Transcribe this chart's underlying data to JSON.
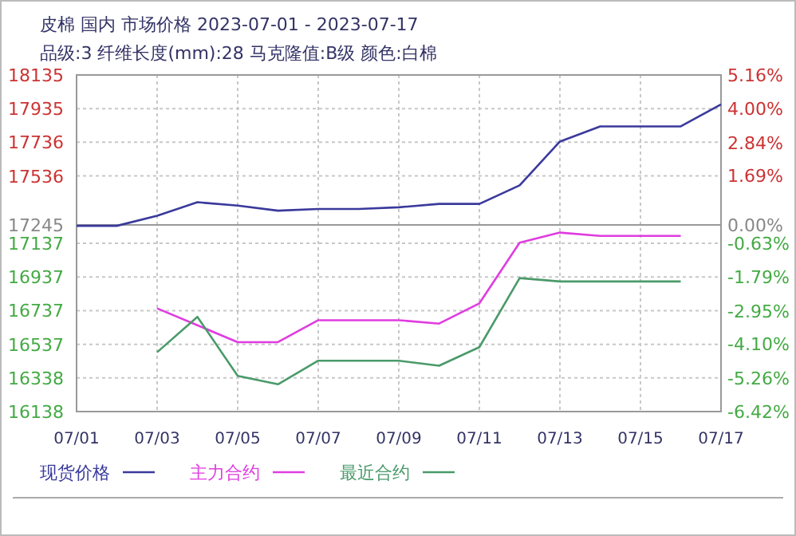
{
  "chart_data": {
    "type": "line",
    "title": "皮棉 国内 市场价格 2023-07-01 - 2023-07-17",
    "subtitle": "品级:3 纤维长度(mm):28 马克隆值:B级 颜色:白棉",
    "categories": [
      "07/01",
      null,
      "07/03",
      null,
      "07/05",
      null,
      "07/07",
      null,
      "07/09",
      null,
      "07/11",
      null,
      "07/13",
      null,
      "07/15",
      null,
      "07/17"
    ],
    "series": [
      {
        "name": "现货价格",
        "color": "#3a3a9c",
        "values": [
          17240,
          17240,
          17300,
          17380,
          17360,
          17330,
          17340,
          17340,
          17350,
          17370,
          17370,
          17480,
          17740,
          17830,
          17830,
          17830,
          17960
        ]
      },
      {
        "name": "主力合约",
        "color": "#e03ce0",
        "values": [
          null,
          null,
          16750,
          16650,
          16550,
          16550,
          16680,
          16680,
          16680,
          16660,
          16780,
          17140,
          17200,
          17180,
          17180,
          17180,
          null
        ]
      },
      {
        "name": "最近合约",
        "color": "#4a9a6a",
        "values": [
          null,
          null,
          16490,
          16700,
          16350,
          16300,
          16440,
          16440,
          16440,
          16410,
          16520,
          16930,
          16910,
          16910,
          16910,
          16910,
          null
        ]
      }
    ],
    "ylim": [
      16138,
      18135
    ],
    "yticks": [
      16138,
      16338,
      16537,
      16737,
      16937,
      17137,
      17245,
      17536,
      17736,
      17935,
      18135
    ],
    "y2lim": [
      -6.42,
      5.16
    ],
    "y2ticks": [
      {
        "value": -6.42,
        "label": "-6.42%"
      },
      {
        "value": -5.26,
        "label": "-5.26%"
      },
      {
        "value": -4.1,
        "label": "-4.10%"
      },
      {
        "value": -2.95,
        "label": "-2.95%"
      },
      {
        "value": -1.79,
        "label": "-1.79%"
      },
      {
        "value": -0.63,
        "label": "-0.63%"
      },
      {
        "value": 0,
        "label": "0.00%"
      },
      {
        "value": 1.69,
        "label": "1.69%"
      },
      {
        "value": 2.84,
        "label": "2.84%"
      },
      {
        "value": 4,
        "label": "4.00%"
      },
      {
        "value": 5.16,
        "label": "5.16%"
      }
    ],
    "ref_lines": [
      {
        "axis": "y2",
        "value": 0,
        "color": "#999999"
      }
    ],
    "grid": true,
    "legend": "bottom"
  }
}
